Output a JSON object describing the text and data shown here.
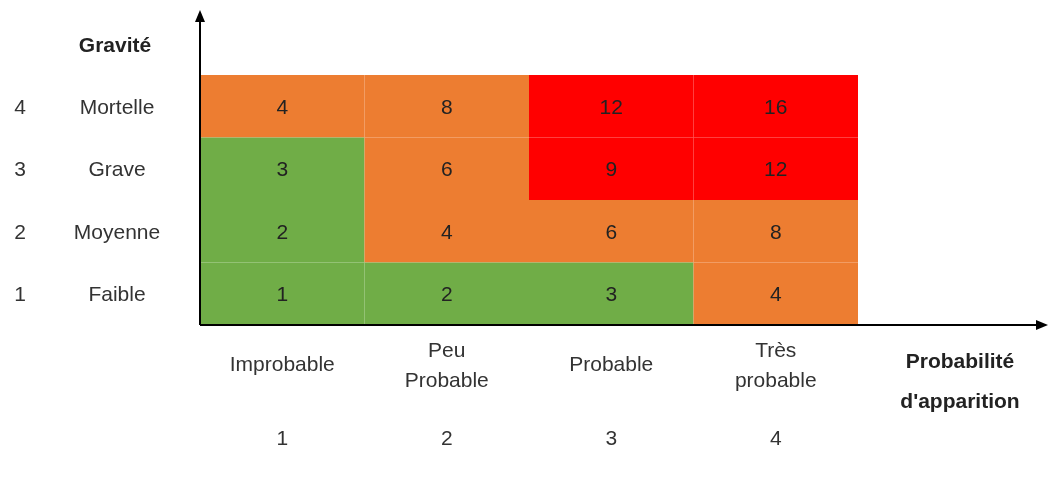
{
  "chart_data": {
    "type": "heatmap",
    "xlabel": "Probabilité d'apparition",
    "ylabel": "Gravité",
    "categories": [
      "Improbable",
      "Peu Probable",
      "Probable",
      "Très probable"
    ],
    "y_categories": [
      "Mortelle",
      "Grave",
      "Moyenne",
      "Faible"
    ],
    "y2_categories": [
      "4",
      "3",
      "2",
      "1"
    ],
    "cells": [
      [
        4,
        8,
        12,
        16
      ],
      [
        3,
        6,
        9,
        12
      ],
      [
        2,
        4,
        6,
        8
      ],
      [
        1,
        2,
        3,
        4
      ]
    ],
    "colors": [
      [
        "#ed7d31",
        "#ed7d31",
        "#ff0000",
        "#ff0000"
      ],
      [
        "#70ad47",
        "#ed7d31",
        "#ff0000",
        "#ff0000"
      ],
      [
        "#70ad47",
        "#ed7d31",
        "#ed7d31",
        "#ed7d31"
      ],
      [
        "#70ad47",
        "#70ad47",
        "#70ad47",
        "#ed7d31"
      ]
    ],
    "annotations": [
      "1",
      "2",
      "3",
      "4"
    ],
    "data_labels": true
  }
}
